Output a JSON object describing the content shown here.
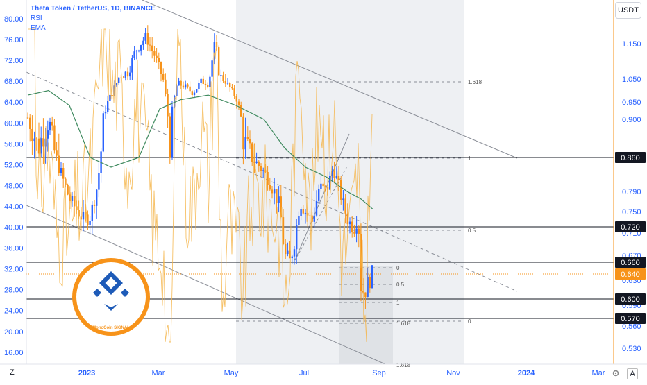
{
  "header": {
    "symbol": "Theta Token / TetherUS, 1D, BINANCE",
    "indicator_1": "RSI",
    "indicator_2": "EMA"
  },
  "currency_button": "USDT",
  "left_axis_ticks": [
    "80.00",
    "76.00",
    "72.00",
    "68.00",
    "64.00",
    "60.00",
    "56.00",
    "52.00",
    "48.00",
    "44.00",
    "40.00",
    "36.00",
    "32.00",
    "28.00",
    "24.00",
    "20.00",
    "16.00"
  ],
  "right_axis_ticks": [
    "1.150",
    "1.050",
    "0.950",
    "0.900",
    "0.790",
    "0.750",
    "0.710",
    "0.670",
    "0.630",
    "0.590",
    "0.560",
    "0.530"
  ],
  "price_labels": [
    {
      "text": "0.860",
      "style": "black"
    },
    {
      "text": "0.720",
      "style": "black"
    },
    {
      "text": "0.660",
      "style": "black"
    },
    {
      "text": "0.640",
      "style": "orange"
    },
    {
      "text": "0.600",
      "style": "black"
    },
    {
      "text": "0.570",
      "style": "black"
    }
  ],
  "time_axis": [
    "2023",
    "Mar",
    "May",
    "Jul",
    "Sep",
    "Nov",
    "2024",
    "Mar"
  ],
  "fib_labels_upper": [
    "1.618",
    "1",
    "0.5",
    "0"
  ],
  "fib_labels_lower": [
    "0",
    "0.5",
    "1",
    "1.618"
  ],
  "fib_bottom_cut": "1.618",
  "logo": {
    "caption": "MonoCoin SIGNAL",
    "ring_color": "#f7931a",
    "mark_color": "#1e5bb8"
  },
  "corner_left": "Z",
  "corner_right": "A",
  "chart_data": {
    "type": "candlestick",
    "title": "Theta Token / TetherUS, 1D, BINANCE",
    "series": [
      {
        "name": "RSI",
        "color": "#f5b54a"
      },
      {
        "name": "EMA",
        "color": "#3f8a5f"
      }
    ],
    "price_range": [
      0.51,
      1.2
    ],
    "rsi_range": [
      14,
      85
    ],
    "horizontal_levels": [
      0.86,
      0.72,
      0.66,
      0.6,
      0.57
    ],
    "last_price": 0.64,
    "colors": {
      "up": "#2962ff",
      "down": "#f7931a",
      "rsi": "#f5b54a",
      "ema": "#3f8a5f"
    }
  }
}
